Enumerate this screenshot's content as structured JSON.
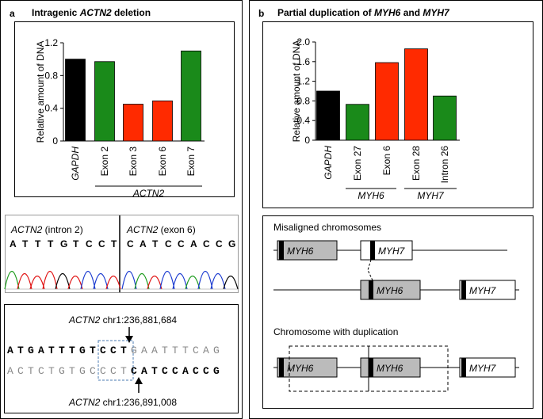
{
  "chart_data": [
    {
      "type": "bar",
      "panel_label": "a",
      "title": [
        "Intragenic ",
        "ACTN2",
        " deletion"
      ],
      "y_label": "Relative amount of DNA",
      "categories": [
        "GAPDH",
        "Exon 2",
        "Exon 3",
        "Exon 6",
        "Exon 7"
      ],
      "values": [
        1.0,
        0.97,
        0.45,
        0.49,
        1.1
      ],
      "colors": [
        "#000000",
        "#1a8a1a",
        "#ff2a00",
        "#ff2a00",
        "#1a8a1a"
      ],
      "groups": [
        "ACTN2"
      ],
      "ylim": [
        0,
        1.2
      ],
      "yticks": [
        0,
        0.4,
        0.8,
        1.2
      ]
    },
    {
      "type": "bar",
      "panel_label": "b",
      "title": [
        "Partial duplication of ",
        "MYH6",
        " and ",
        "MYH7"
      ],
      "y_label": "Relative amount of DNA",
      "categories": [
        "GAPDH",
        "Exon 27",
        "Exon 6",
        "Exon 28",
        "Intron 26"
      ],
      "values": [
        1.0,
        0.73,
        1.58,
        1.86,
        0.9
      ],
      "colors": [
        "#000000",
        "#1a8a1a",
        "#ff2a00",
        "#ff2a00",
        "#1a8a1a"
      ],
      "groups": [
        "MYH6",
        "MYH7"
      ],
      "ylim": [
        0,
        2
      ],
      "yticks": [
        0,
        0.4,
        0.8,
        1.2,
        1.6,
        {
          "value": 2,
          "label": "2.0"
        }
      ]
    }
  ],
  "chromatogram": {
    "left_label": [
      "ACTN2",
      " (intron 2)"
    ],
    "right_label": [
      "ACTN2",
      " (exon 6)"
    ],
    "left_bases": [
      "A",
      "T",
      "T",
      "T",
      "G",
      "T",
      "C",
      "C",
      "T"
    ],
    "right_bases": [
      "C",
      "A",
      "T",
      "C",
      "C",
      "A",
      "C",
      "C",
      "G"
    ]
  },
  "sequence": {
    "top_label": [
      "ACTN2",
      " chr1:236,881,684"
    ],
    "row1": [
      "ATGATTTGTCCT",
      "GAATTTCAG"
    ],
    "row2": [
      "ACTCTGTGCCCT",
      "CATCCACCG"
    ],
    "bottom_label": [
      "ACTN2",
      " chr1:236,891,008"
    ]
  },
  "diagram": {
    "misaligned_label": "Misaligned chromosomes",
    "duplication_label": "Chromosome with duplication",
    "row1": [
      "MYH6",
      "MYH7"
    ],
    "row2": [
      "MYH6",
      "MYH7"
    ],
    "row3": [
      "MYH6",
      "MYH6",
      "MYH7"
    ]
  }
}
